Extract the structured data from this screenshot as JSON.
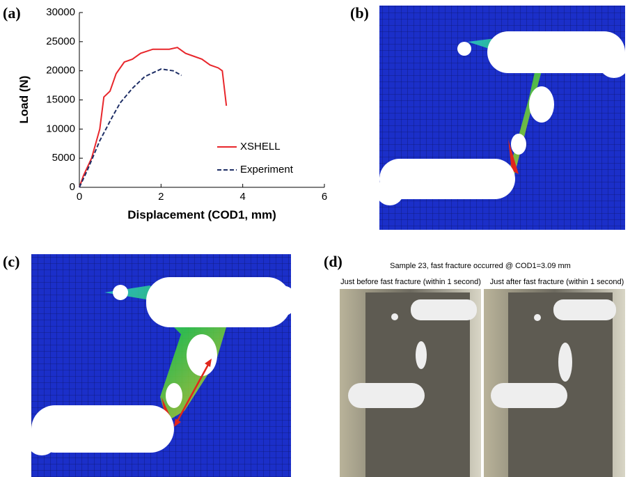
{
  "panel_labels": [
    "(a)",
    "(b)",
    "(c)",
    "(d)"
  ],
  "chart_data": {
    "type": "line",
    "xlabel": "Displacement (COD1, mm)",
    "ylabel": "Load (N)",
    "xlim": [
      0,
      6
    ],
    "xticks": [
      0,
      2,
      4,
      6
    ],
    "ylim": [
      0,
      30000
    ],
    "yticks": [
      0,
      5000,
      10000,
      15000,
      20000,
      25000,
      30000
    ],
    "grid": false,
    "series": [
      {
        "name": "XSHELL",
        "color": "#e8262b",
        "dash": false,
        "x": [
          0,
          0.1,
          0.3,
          0.5,
          0.6,
          0.75,
          0.9,
          1.1,
          1.3,
          1.5,
          1.8,
          2.2,
          2.4,
          2.6,
          2.8,
          3.0,
          3.2,
          3.4,
          3.5,
          3.6
        ],
        "values": [
          0,
          2000,
          5000,
          10000,
          15500,
          16500,
          19500,
          21500,
          22000,
          23000,
          23700,
          23700,
          24000,
          23000,
          22500,
          22000,
          21000,
          20500,
          20000,
          14000
        ]
      },
      {
        "name": "Experiment",
        "color": "#1f2f66",
        "dash": true,
        "x": [
          0,
          0.2,
          0.5,
          0.8,
          1.0,
          1.3,
          1.6,
          2.0,
          2.3,
          2.5
        ],
        "values": [
          0,
          3000,
          8000,
          12000,
          14500,
          17000,
          19000,
          20300,
          20000,
          19200
        ]
      }
    ]
  },
  "photo": {
    "title": "Sample 23, fast fracture occurred @ COD1=3.09 mm",
    "captions": [
      "Just before fast fracture (within 1 second)",
      "Just after fast fracture (within 1 second)"
    ]
  }
}
